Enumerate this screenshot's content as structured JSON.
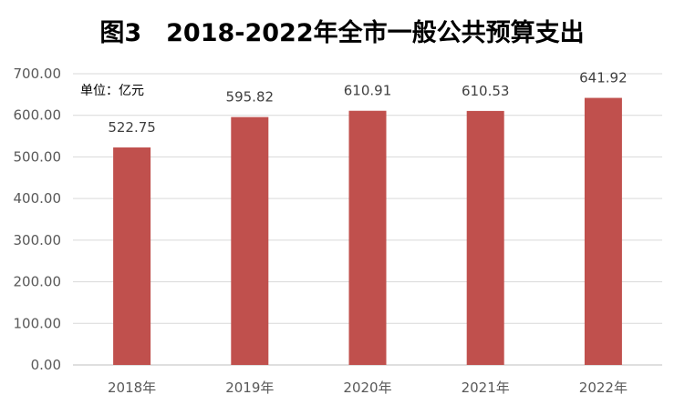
{
  "chart_data": {
    "type": "bar",
    "title": "图3　2018-2022年全市一般公共预算支出",
    "unit_note": "单位：亿元",
    "categories": [
      "2018年",
      "2019年",
      "2020年",
      "2021年",
      "2022年"
    ],
    "values": [
      522.75,
      595.82,
      610.91,
      610.53,
      641.92
    ],
    "value_labels": [
      "522.75",
      "595.82",
      "610.91",
      "610.53",
      "641.92"
    ],
    "ylim": [
      0,
      700
    ],
    "y_ticks": [
      "0.00",
      "100.00",
      "200.00",
      "300.00",
      "400.00",
      "500.00",
      "600.00",
      "700.00"
    ],
    "xlabel": "",
    "ylabel": "",
    "grid": true,
    "legend": "none",
    "colors": {
      "bar": "#c0504d"
    }
  }
}
